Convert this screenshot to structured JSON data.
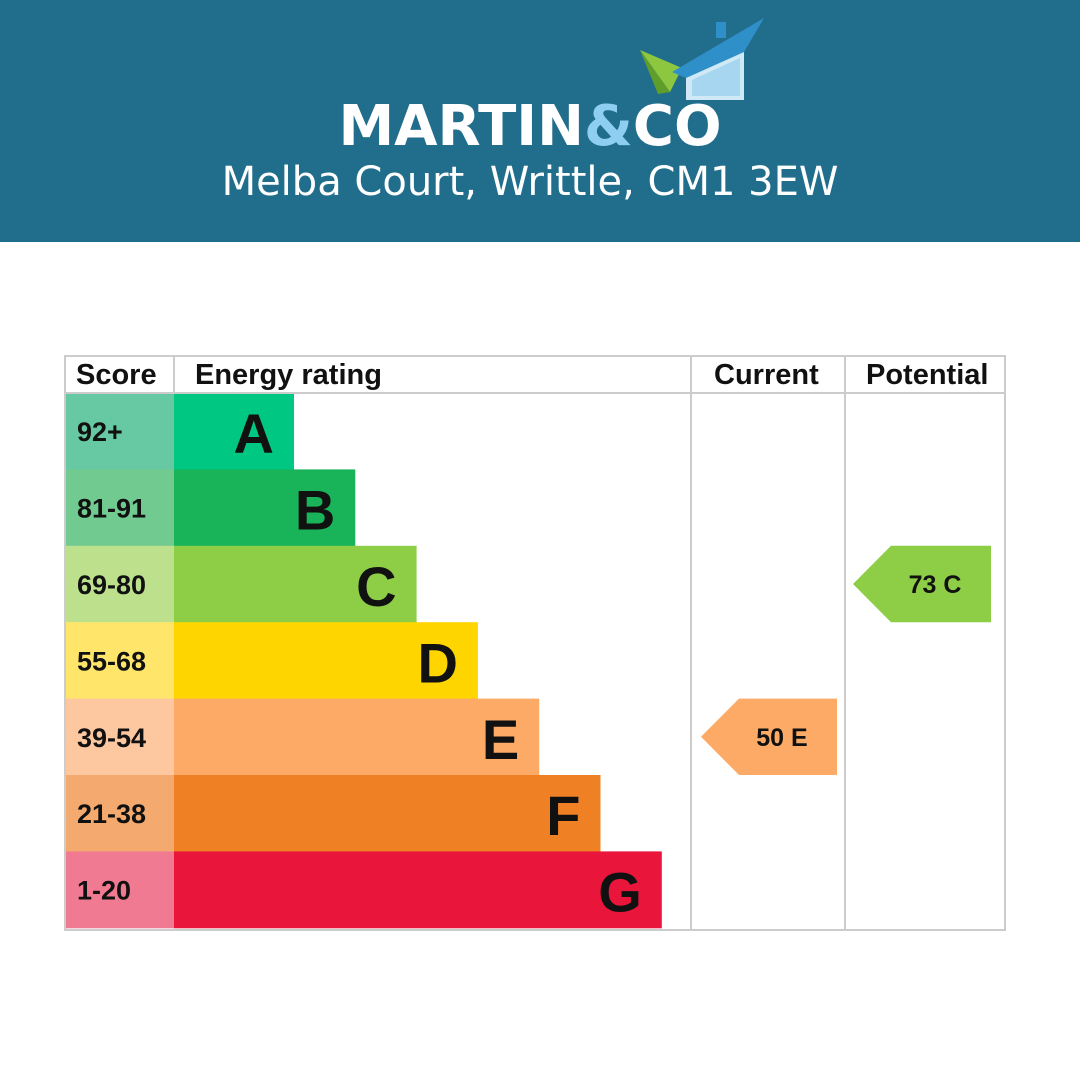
{
  "header": {
    "brand_left": "MARTIN",
    "brand_amp": "&",
    "brand_right": "CO",
    "address": "Melba Court, Writtle, CM1 3EW",
    "background_color": "#216e8c",
    "accent_color": "#8ecff1",
    "logo_icon": "house-roof-icon"
  },
  "chart_data": {
    "type": "bar",
    "columns": {
      "score": "Score",
      "rating": "Energy rating",
      "current": "Current",
      "potential": "Potential"
    },
    "bands": [
      {
        "letter": "A",
        "score": "92+",
        "color": "#00c781",
        "score_bg": "#66c9a4"
      },
      {
        "letter": "B",
        "score": "81-91",
        "color": "#19b459",
        "score_bg": "#71ca8f"
      },
      {
        "letter": "C",
        "score": "69-80",
        "color": "#8dce46",
        "score_bg": "#bce08c"
      },
      {
        "letter": "D",
        "score": "55-68",
        "color": "#ffd500",
        "score_bg": "#ffe66a"
      },
      {
        "letter": "E",
        "score": "39-54",
        "color": "#fcaa65",
        "score_bg": "#fdc8a0"
      },
      {
        "letter": "F",
        "score": "21-38",
        "color": "#ef8023",
        "score_bg": "#f4aa6e"
      },
      {
        "letter": "G",
        "score": "1-20",
        "color": "#e9153b",
        "score_bg": "#f07a91"
      }
    ],
    "current": {
      "value": 50,
      "band": "E",
      "label": "50 E",
      "color": "#fcaa65"
    },
    "potential": {
      "value": 73,
      "band": "C",
      "label": "73 C",
      "color": "#8dce46"
    }
  }
}
